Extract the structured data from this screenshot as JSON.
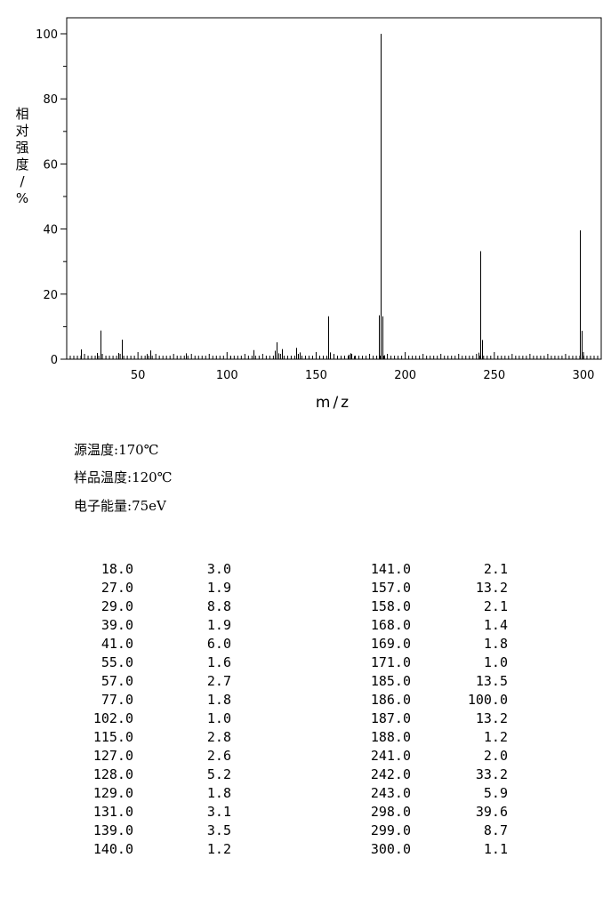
{
  "chart_data": {
    "type": "bar",
    "title": "",
    "xlabel": "m/z",
    "ylabel": "相对强度/%",
    "xlim": [
      10,
      310
    ],
    "ylim": [
      0,
      105
    ],
    "x_ticks": [
      50,
      100,
      150,
      200,
      250,
      300
    ],
    "y_ticks": [
      0,
      20,
      40,
      60,
      80,
      100
    ],
    "grid": false,
    "color": "#000000",
    "peaks": [
      {
        "mz": 18.0,
        "intensity": 3.0
      },
      {
        "mz": 27.0,
        "intensity": 1.9
      },
      {
        "mz": 29.0,
        "intensity": 8.8
      },
      {
        "mz": 39.0,
        "intensity": 1.9
      },
      {
        "mz": 41.0,
        "intensity": 6.0
      },
      {
        "mz": 55.0,
        "intensity": 1.6
      },
      {
        "mz": 57.0,
        "intensity": 2.7
      },
      {
        "mz": 77.0,
        "intensity": 1.8
      },
      {
        "mz": 102.0,
        "intensity": 1.0
      },
      {
        "mz": 115.0,
        "intensity": 2.8
      },
      {
        "mz": 127.0,
        "intensity": 2.6
      },
      {
        "mz": 128.0,
        "intensity": 5.2
      },
      {
        "mz": 129.0,
        "intensity": 1.8
      },
      {
        "mz": 131.0,
        "intensity": 3.1
      },
      {
        "mz": 139.0,
        "intensity": 3.5
      },
      {
        "mz": 140.0,
        "intensity": 1.2
      },
      {
        "mz": 141.0,
        "intensity": 2.1
      },
      {
        "mz": 157.0,
        "intensity": 13.2
      },
      {
        "mz": 158.0,
        "intensity": 2.1
      },
      {
        "mz": 168.0,
        "intensity": 1.4
      },
      {
        "mz": 169.0,
        "intensity": 1.8
      },
      {
        "mz": 171.0,
        "intensity": 1.0
      },
      {
        "mz": 185.0,
        "intensity": 13.5
      },
      {
        "mz": 186.0,
        "intensity": 100.0
      },
      {
        "mz": 187.0,
        "intensity": 13.2
      },
      {
        "mz": 188.0,
        "intensity": 1.2
      },
      {
        "mz": 241.0,
        "intensity": 2.0
      },
      {
        "mz": 242.0,
        "intensity": 33.2
      },
      {
        "mz": 243.0,
        "intensity": 5.9
      },
      {
        "mz": 298.0,
        "intensity": 39.6
      },
      {
        "mz": 299.0,
        "intensity": 8.7
      },
      {
        "mz": 300.0,
        "intensity": 1.1
      }
    ]
  },
  "conditions": [
    {
      "label": "源温度:",
      "value": "170℃"
    },
    {
      "label": "样品温度:",
      "value": "120℃"
    },
    {
      "label": "电子能量:",
      "value": "75eV"
    }
  ],
  "peak_table": {
    "left": [
      [
        "18.0",
        "3.0"
      ],
      [
        "27.0",
        "1.9"
      ],
      [
        "29.0",
        "8.8"
      ],
      [
        "39.0",
        "1.9"
      ],
      [
        "41.0",
        "6.0"
      ],
      [
        "55.0",
        "1.6"
      ],
      [
        "57.0",
        "2.7"
      ],
      [
        "77.0",
        "1.8"
      ],
      [
        "102.0",
        "1.0"
      ],
      [
        "115.0",
        "2.8"
      ],
      [
        "127.0",
        "2.6"
      ],
      [
        "128.0",
        "5.2"
      ],
      [
        "129.0",
        "1.8"
      ],
      [
        "131.0",
        "3.1"
      ],
      [
        "139.0",
        "3.5"
      ],
      [
        "140.0",
        "1.2"
      ]
    ],
    "right": [
      [
        "141.0",
        "2.1"
      ],
      [
        "157.0",
        "13.2"
      ],
      [
        "158.0",
        "2.1"
      ],
      [
        "168.0",
        "1.4"
      ],
      [
        "169.0",
        "1.8"
      ],
      [
        "171.0",
        "1.0"
      ],
      [
        "185.0",
        "13.5"
      ],
      [
        "186.0",
        "100.0"
      ],
      [
        "187.0",
        "13.2"
      ],
      [
        "188.0",
        "1.2"
      ],
      [
        "241.0",
        "2.0"
      ],
      [
        "242.0",
        "33.2"
      ],
      [
        "243.0",
        "5.9"
      ],
      [
        "298.0",
        "39.6"
      ],
      [
        "299.0",
        "8.7"
      ],
      [
        "300.0",
        "1.1"
      ]
    ]
  }
}
